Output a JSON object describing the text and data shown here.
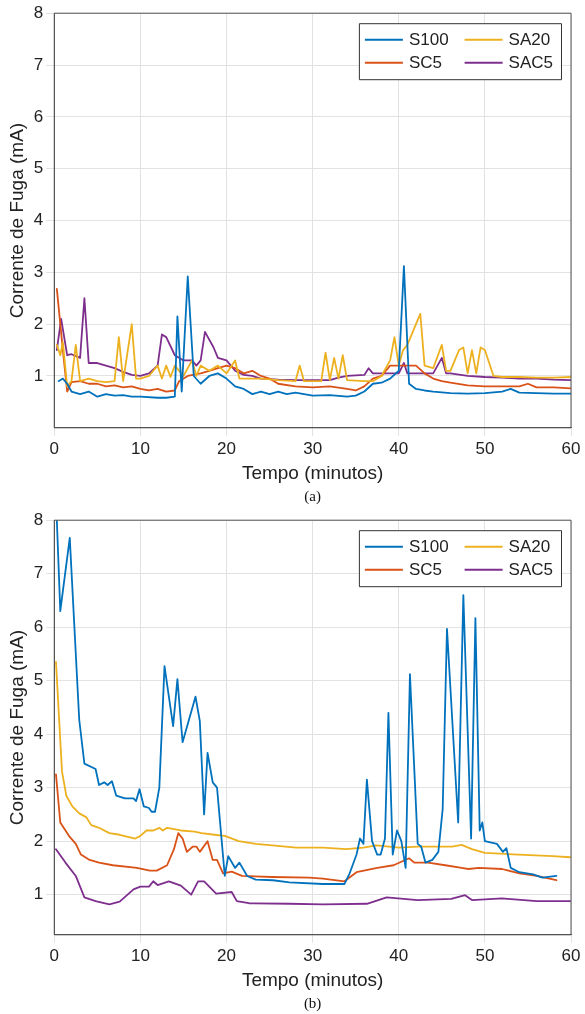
{
  "chart_data": [
    {
      "type": "line",
      "xlabel": "Tempo (minutos)",
      "ylabel": "Corrente de Fuga (mA)",
      "xlim": [
        0,
        60
      ],
      "xticks": [
        0,
        10,
        20,
        30,
        40,
        50,
        60
      ],
      "ylim": [
        0,
        8
      ],
      "yticks": [
        1,
        2,
        3,
        4,
        5,
        6,
        7,
        8
      ],
      "grid": true,
      "legend": "top right",
      "marker": "none",
      "line_style": "solid",
      "annotations": [
        "(a)"
      ],
      "series": [
        {
          "name": "S100",
          "color": "#0072bd",
          "x": [
            0.5,
            1,
            1.5,
            2,
            3,
            4,
            5,
            6,
            7,
            8,
            9,
            10,
            12,
            13,
            14,
            14.3,
            14.8,
            15.5,
            16.2,
            17,
            18,
            19,
            20,
            21,
            22,
            23,
            24,
            25,
            26,
            27,
            28,
            30,
            32,
            34,
            35,
            36,
            37,
            38,
            39,
            40,
            40.6,
            41.2,
            42,
            43,
            44,
            46,
            48,
            50,
            52,
            53,
            54,
            56,
            58,
            60
          ],
          "values": [
            0.9,
            0.95,
            0.85,
            0.7,
            0.65,
            0.7,
            0.6,
            0.65,
            0.62,
            0.63,
            0.6,
            0.6,
            0.58,
            0.58,
            0.6,
            2.15,
            0.7,
            2.92,
            1.0,
            0.85,
            1.0,
            1.05,
            0.95,
            0.8,
            0.75,
            0.65,
            0.7,
            0.65,
            0.7,
            0.65,
            0.68,
            0.62,
            0.63,
            0.6,
            0.62,
            0.7,
            0.85,
            0.87,
            0.95,
            1.1,
            3.12,
            0.85,
            0.75,
            0.72,
            0.7,
            0.67,
            0.66,
            0.67,
            0.7,
            0.75,
            0.68,
            0.67,
            0.66,
            0.66
          ]
        },
        {
          "name": "SA20",
          "color": "#edb120",
          "x": [
            0.3,
            0.7,
            1,
            1.5,
            2,
            2.5,
            3,
            4,
            5,
            6,
            7,
            7.5,
            8,
            9,
            9.5,
            10,
            11,
            12,
            12.5,
            13,
            13.5,
            14,
            15,
            16,
            16.5,
            17,
            18,
            19,
            20,
            21,
            21.5,
            22,
            24,
            26,
            28,
            28.5,
            29,
            31,
            31.5,
            32,
            32.5,
            33,
            33.5,
            34,
            36,
            37,
            38,
            39,
            39.5,
            40,
            40.5,
            41,
            42,
            42.5,
            43,
            44,
            45,
            45.5,
            46,
            47,
            47.5,
            48,
            48.5,
            49,
            49.5,
            50,
            51,
            52,
            54,
            56,
            58,
            60
          ],
          "values": [
            1.6,
            1.4,
            1.65,
            0.8,
            0.9,
            1.6,
            0.9,
            0.95,
            0.9,
            0.88,
            0.9,
            1.75,
            0.9,
            2.0,
            0.95,
            0.95,
            1.0,
            1.2,
            0.95,
            1.2,
            0.98,
            1.2,
            1.0,
            1.3,
            1.0,
            1.2,
            1.1,
            1.2,
            1.05,
            1.3,
            0.95,
            0.95,
            0.95,
            0.92,
            0.9,
            1.2,
            0.9,
            0.9,
            1.45,
            0.92,
            1.35,
            0.95,
            1.4,
            0.92,
            0.9,
            0.9,
            1.0,
            1.3,
            1.75,
            1.2,
            1.5,
            1.6,
            2.0,
            2.2,
            1.2,
            1.15,
            1.6,
            1.1,
            1.1,
            1.5,
            1.55,
            1.05,
            1.5,
            1.05,
            1.55,
            1.5,
            1.0,
            0.98,
            0.98,
            0.97,
            0.97,
            0.98
          ]
        },
        {
          "name": "SC5",
          "color": "#d95319",
          "x": [
            0.3,
            1,
            1.5,
            2,
            3,
            4,
            5,
            6,
            7,
            8,
            9,
            10,
            11,
            12,
            13,
            14,
            14.5,
            15.5,
            17,
            18,
            19,
            20,
            21,
            22,
            23,
            24,
            25,
            26,
            28,
            30,
            32,
            34,
            35,
            36,
            37,
            38,
            39,
            40,
            41,
            42,
            43,
            44,
            45,
            46,
            48,
            50,
            52,
            54,
            55,
            56,
            58,
            60
          ],
          "values": [
            2.68,
            1.5,
            0.7,
            0.88,
            0.9,
            0.85,
            0.85,
            0.8,
            0.82,
            0.78,
            0.8,
            0.75,
            0.72,
            0.75,
            0.7,
            0.72,
            0.9,
            1.0,
            1.05,
            1.1,
            1.15,
            1.2,
            1.15,
            1.05,
            1.1,
            1.0,
            0.95,
            0.85,
            0.8,
            0.78,
            0.8,
            0.75,
            0.72,
            0.8,
            0.95,
            1.0,
            1.2,
            1.2,
            1.2,
            1.2,
            1.05,
            0.95,
            0.9,
            0.87,
            0.82,
            0.8,
            0.8,
            0.8,
            0.85,
            0.78,
            0.78,
            0.76
          ]
        },
        {
          "name": "SAC5",
          "color": "#7e2f8e",
          "x": [
            0.3,
            0.8,
            1.5,
            2,
            3,
            3.5,
            4,
            5,
            6,
            7,
            8,
            9,
            10,
            11,
            12,
            12.5,
            13,
            14,
            15,
            16,
            16.5,
            17,
            17.5,
            18.5,
            19,
            20,
            21,
            22,
            23,
            24,
            26,
            28,
            30,
            32,
            33,
            34,
            36,
            36.5,
            37,
            38,
            40,
            40.6,
            41,
            42,
            44,
            45,
            45.5,
            46,
            48,
            50,
            52,
            54,
            56,
            58,
            60
          ],
          "values": [
            1.5,
            2.1,
            1.4,
            1.42,
            1.35,
            2.5,
            1.25,
            1.25,
            1.2,
            1.15,
            1.08,
            1.02,
            1.0,
            1.05,
            1.2,
            1.8,
            1.75,
            1.4,
            1.3,
            1.3,
            1.2,
            1.3,
            1.85,
            1.55,
            1.35,
            1.3,
            1.1,
            1.02,
            1.0,
            0.95,
            0.93,
            0.92,
            0.92,
            0.92,
            0.97,
            1.0,
            1.02,
            1.15,
            1.05,
            1.05,
            1.05,
            1.25,
            1.05,
            1.05,
            1.05,
            1.35,
            1.05,
            1.05,
            1.0,
            0.98,
            0.97,
            0.95,
            0.95,
            0.93,
            0.92
          ]
        }
      ]
    },
    {
      "type": "line",
      "xlabel": "Tempo (minutos)",
      "ylabel": "Corrente de Fuga (mA)",
      "xlim": [
        0,
        60
      ],
      "xticks": [
        0,
        10,
        20,
        30,
        40,
        50,
        60
      ],
      "ylim": [
        0.25,
        8
      ],
      "yticks": [
        1,
        2,
        3,
        4,
        5,
        6,
        7,
        8
      ],
      "grid": true,
      "legend": "top right",
      "marker": "none",
      "line_style": "solid",
      "annotations": [
        "(b)"
      ],
      "series": [
        {
          "name": "S100",
          "color": "#0072bd",
          "x": [
            0.3,
            0.7,
            1.8,
            2.9,
            3.5,
            4.8,
            5.2,
            5.8,
            6.2,
            6.7,
            7.2,
            8.2,
            9.2,
            9.5,
            9.9,
            10.4,
            11,
            11.3,
            11.7,
            12.2,
            12.8,
            13.8,
            14.3,
            14.9,
            16.4,
            16.9,
            17.4,
            17.8,
            18.4,
            18.9,
            19.8,
            20.2,
            21,
            21.5,
            22.4,
            23.4,
            25.4,
            27.3,
            31.2,
            33.7,
            34.3,
            35.1,
            35.5,
            35.9,
            36.3,
            36.9,
            37.5,
            37.9,
            38.4,
            38.8,
            39.3,
            39.8,
            40.3,
            40.8,
            41.3,
            42.2,
            42.6,
            43.1,
            43.9,
            44.6,
            45.1,
            45.6,
            46.9,
            47.5,
            48.4,
            48.9,
            49.4,
            49.7,
            50,
            51.4,
            52.1,
            52.5,
            53,
            54,
            55.6,
            56.7,
            58.3
          ],
          "values": [
            8.0,
            6.3,
            7.67,
            4.27,
            3.45,
            3.35,
            3.05,
            3.1,
            3.05,
            3.12,
            2.85,
            2.8,
            2.8,
            2.75,
            2.97,
            2.65,
            2.62,
            2.55,
            2.55,
            3.0,
            5.27,
            4.15,
            5.03,
            3.85,
            4.7,
            4.25,
            2.5,
            3.65,
            3.1,
            3.0,
            1.35,
            1.72,
            1.5,
            1.6,
            1.35,
            1.28,
            1.27,
            1.23,
            1.2,
            1.2,
            1.4,
            1.75,
            2.05,
            1.95,
            3.15,
            2.0,
            1.75,
            1.75,
            2.05,
            4.4,
            1.75,
            2.2,
            2.0,
            1.5,
            5.12,
            1.95,
            1.9,
            1.6,
            1.65,
            1.8,
            2.6,
            5.97,
            2.35,
            6.6,
            2.05,
            6.17,
            2.2,
            2.35,
            2.0,
            1.95,
            1.8,
            1.87,
            1.5,
            1.42,
            1.38,
            1.32,
            1.35
          ]
        },
        {
          "name": "SA20",
          "color": "#edb120",
          "x": [
            0.2,
            0.9,
            1.4,
            2.1,
            2.9,
            3.7,
            4.3,
            5.2,
            6.4,
            7.6,
            9.4,
            10,
            10.7,
            11.5,
            12.2,
            12.6,
            13.1,
            14.7,
            16.3,
            17.1,
            18.6,
            19.8,
            21.4,
            23.4,
            25.3,
            28.1,
            31.2,
            33.9,
            35.9,
            37.4,
            40,
            42.2,
            44.2,
            46.2,
            47.3,
            48.5,
            50,
            53.9,
            57.9,
            59.9
          ],
          "values": [
            5.35,
            3.3,
            2.85,
            2.65,
            2.52,
            2.45,
            2.3,
            2.25,
            2.15,
            2.12,
            2.05,
            2.1,
            2.2,
            2.2,
            2.25,
            2.2,
            2.25,
            2.2,
            2.18,
            2.15,
            2.12,
            2.1,
            2.0,
            1.95,
            1.92,
            1.88,
            1.88,
            1.85,
            1.88,
            1.92,
            1.88,
            1.9,
            1.9,
            1.9,
            1.93,
            1.85,
            1.78,
            1.75,
            1.72,
            1.7
          ]
        },
        {
          "name": "SC5",
          "color": "#d95319",
          "x": [
            0.2,
            0.7,
            1.7,
            2.5,
            3.1,
            4.1,
            5.2,
            6.8,
            9.6,
            11.1,
            11.9,
            13.1,
            13.9,
            14.4,
            14.9,
            15.4,
            16.1,
            16.5,
            16.9,
            17.8,
            18.4,
            18.9,
            19.6,
            20.6,
            21.8,
            25.3,
            29.6,
            31.2,
            33.7,
            35.1,
            37.5,
            39.4,
            41.2,
            41.8,
            43.4,
            45.4,
            47.3,
            48.1,
            49.3,
            52,
            54,
            56,
            58.3
          ],
          "values": [
            3.25,
            2.35,
            2.1,
            1.95,
            1.75,
            1.65,
            1.6,
            1.55,
            1.5,
            1.45,
            1.45,
            1.55,
            1.85,
            2.15,
            2.05,
            1.8,
            1.9,
            1.9,
            1.8,
            2.0,
            1.65,
            1.65,
            1.4,
            1.43,
            1.35,
            1.33,
            1.32,
            1.3,
            1.25,
            1.42,
            1.5,
            1.55,
            1.68,
            1.6,
            1.6,
            1.55,
            1.5,
            1.48,
            1.5,
            1.48,
            1.4,
            1.35,
            1.27
          ]
        },
        {
          "name": "SAC5",
          "color": "#7e2f8e",
          "x": [
            0.2,
            1.3,
            2.5,
            3.5,
            4.8,
            6.4,
            7.6,
            9.2,
            10,
            11,
            11.5,
            12,
            13.3,
            14.7,
            15.9,
            16.7,
            17.4,
            18.8,
            20.6,
            21.2,
            22.6,
            27.3,
            31.2,
            36.3,
            38.6,
            42.2,
            46.1,
            47.7,
            48.5,
            52,
            56,
            59.9
          ],
          "values": [
            1.85,
            1.6,
            1.35,
            0.95,
            0.88,
            0.82,
            0.87,
            1.1,
            1.15,
            1.15,
            1.25,
            1.18,
            1.25,
            1.17,
            1.0,
            1.25,
            1.25,
            1.02,
            1.05,
            0.88,
            0.84,
            0.83,
            0.82,
            0.83,
            0.95,
            0.9,
            0.92,
            0.99,
            0.9,
            0.93,
            0.88,
            0.88
          ]
        }
      ]
    }
  ]
}
